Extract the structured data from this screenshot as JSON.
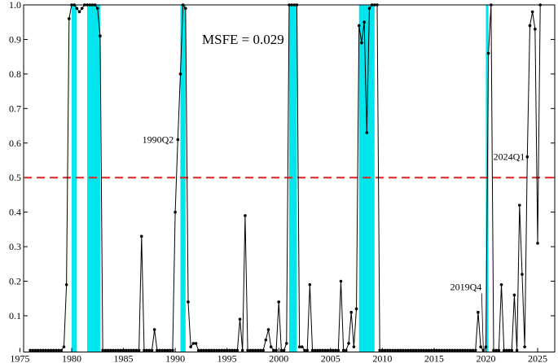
{
  "chart_data": {
    "type": "line",
    "annotation": "MSFE = 0.029",
    "color": "#000000",
    "shade_color": "#00e5ee",
    "shaded": [
      [
        1980,
        1980.5
      ],
      [
        1981.5,
        1982.75
      ],
      [
        1990.5,
        1991
      ],
      [
        2001,
        2001.75
      ],
      [
        2007.75,
        2009.25
      ],
      [
        2020,
        2020.25
      ]
    ],
    "reference_line": {
      "value": 0.5,
      "color": "#e3211c"
    },
    "point_labels": [
      {
        "text": "1990Q2",
        "x": 1990.25
      },
      {
        "text": "2019Q4",
        "x": 2019.75
      },
      {
        "text": "2024Q1",
        "x": 2024
      }
    ],
    "xlim": [
      1975.36,
      2026.65
    ],
    "ylim": [
      -0.005,
      1
    ],
    "xticks": [
      1975,
      1980,
      1985,
      1990,
      1995,
      2000,
      2005,
      2010,
      2015,
      2020,
      2025
    ],
    "yticks": [
      0.1,
      0.2,
      0.3,
      0.4,
      0.5,
      0.6,
      0.7,
      0.8,
      0.9,
      {
        "value": 1,
        "label": "1.0"
      }
    ],
    "x": [
      1976,
      1976.25,
      1976.5,
      1976.75,
      1977,
      1977.25,
      1977.5,
      1977.75,
      1978,
      1978.25,
      1978.5,
      1978.75,
      1979,
      1979.25,
      1979.5,
      1979.75,
      1980,
      1980.25,
      1980.5,
      1980.75,
      1981,
      1981.25,
      1981.5,
      1981.75,
      1982,
      1982.25,
      1982.5,
      1982.75,
      1983,
      1983.25,
      1983.5,
      1983.75,
      1984,
      1984.25,
      1984.5,
      1984.75,
      1985,
      1985.25,
      1985.5,
      1985.75,
      1986,
      1986.25,
      1986.5,
      1986.75,
      1987,
      1987.25,
      1987.5,
      1987.75,
      1988,
      1988.25,
      1988.5,
      1988.75,
      1989,
      1989.25,
      1989.5,
      1989.75,
      1990,
      1990.25,
      1990.5,
      1990.75,
      1991,
      1991.25,
      1991.5,
      1991.75,
      1992,
      1992.25,
      1992.5,
      1992.75,
      1993,
      1993.25,
      1993.5,
      1993.75,
      1994,
      1994.25,
      1994.5,
      1994.75,
      1995,
      1995.25,
      1995.5,
      1995.75,
      1996,
      1996.25,
      1996.5,
      1996.75,
      1997,
      1997.25,
      1997.5,
      1997.75,
      1998,
      1998.25,
      1998.5,
      1998.75,
      1999,
      1999.25,
      1999.5,
      1999.75,
      2000,
      2000.25,
      2000.5,
      2000.75,
      2001,
      2001.25,
      2001.5,
      2001.75,
      2002,
      2002.25,
      2002.5,
      2002.75,
      2003,
      2003.25,
      2003.5,
      2003.75,
      2004,
      2004.25,
      2004.5,
      2004.75,
      2005,
      2005.25,
      2005.5,
      2005.75,
      2006,
      2006.25,
      2006.5,
      2006.75,
      2007,
      2007.25,
      2007.5,
      2007.75,
      2008,
      2008.25,
      2008.5,
      2008.75,
      2009,
      2009.25,
      2009.5,
      2009.75,
      2010,
      2010.25,
      2010.5,
      2010.75,
      2011,
      2011.25,
      2011.5,
      2011.75,
      2012,
      2012.25,
      2012.5,
      2012.75,
      2013,
      2013.25,
      2013.5,
      2013.75,
      2014,
      2014.25,
      2014.5,
      2014.75,
      2015,
      2015.25,
      2015.5,
      2015.75,
      2016,
      2016.25,
      2016.5,
      2016.75,
      2017,
      2017.25,
      2017.5,
      2017.75,
      2018,
      2018.25,
      2018.5,
      2018.75,
      2019,
      2019.25,
      2019.5,
      2019.75,
      2020,
      2020.25,
      2020.5,
      2020.75,
      2021,
      2021.25,
      2021.5,
      2021.75,
      2022,
      2022.25,
      2022.5,
      2022.75,
      2023,
      2023.25,
      2023.5,
      2023.75,
      2024,
      2024.25,
      2024.5,
      2024.75,
      2025,
      2025.25
    ],
    "values": [
      0,
      0,
      0,
      0,
      0,
      0,
      0,
      0,
      0,
      0,
      0,
      0,
      0,
      0.01,
      0.19,
      0.96,
      1,
      1,
      0.99,
      0.98,
      0.99,
      1,
      1,
      1,
      1,
      1,
      0.99,
      0.91,
      0,
      0,
      0,
      0,
      0,
      0,
      0,
      0,
      0,
      0,
      0,
      0,
      0,
      0,
      0,
      0.33,
      0,
      0,
      0,
      0,
      0.06,
      0,
      0,
      0,
      0,
      0,
      0,
      0,
      0.4,
      0.61,
      0.8,
      1,
      0.99,
      0.14,
      0.01,
      0.02,
      0.02,
      0,
      0,
      0,
      0,
      0,
      0,
      0,
      0,
      0,
      0,
      0,
      0,
      0,
      0,
      0,
      0,
      0.09,
      0,
      0.39,
      0,
      0,
      0,
      0,
      0,
      0,
      0,
      0.03,
      0.06,
      0.01,
      0,
      0,
      0.14,
      0,
      0,
      0.02,
      1,
      1,
      1,
      1,
      0.01,
      0.01,
      0,
      0,
      0.19,
      0,
      0,
      0,
      0,
      0,
      0,
      0,
      0,
      0,
      0,
      0,
      0.2,
      0,
      0,
      0.02,
      0.11,
      0.01,
      0.12,
      0.94,
      0.89,
      0.95,
      0.63,
      0.99,
      1,
      1,
      1,
      0,
      0,
      0,
      0,
      0,
      0,
      0,
      0,
      0,
      0,
      0,
      0,
      0,
      0,
      0,
      0,
      0,
      0,
      0,
      0,
      0,
      0,
      0,
      0,
      0,
      0,
      0,
      0,
      0,
      0,
      0,
      0,
      0,
      0,
      0,
      0,
      0,
      0,
      0.11,
      0.01,
      0,
      0.01,
      0.86,
      1,
      0,
      0,
      0,
      0.19,
      0,
      0,
      0,
      0,
      0.16,
      0,
      0.42,
      0.22,
      0.01,
      0.56,
      0.94,
      0.98,
      0.93,
      0.31,
      1
    ]
  }
}
